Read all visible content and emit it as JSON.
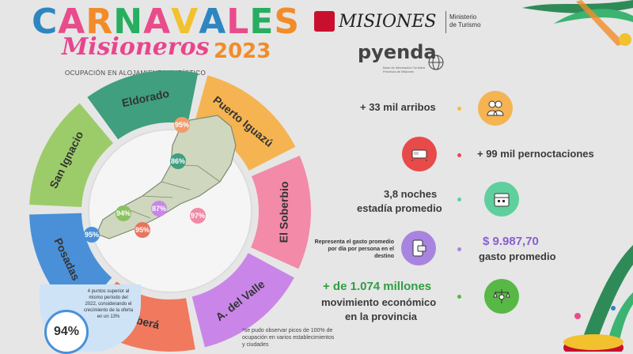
{
  "title": {
    "carnavales": "CARNAVALES",
    "letters": [
      {
        "ch": "C",
        "color": "#2e86c1"
      },
      {
        "ch": "A",
        "color": "#e94c8b"
      },
      {
        "ch": "R",
        "color": "#f28c28"
      },
      {
        "ch": "N",
        "color": "#27ae60"
      },
      {
        "ch": "A",
        "color": "#e94c8b"
      },
      {
        "ch": "V",
        "color": "#f2c12e"
      },
      {
        "ch": "A",
        "color": "#2e86c1"
      },
      {
        "ch": "L",
        "color": "#e94c8b"
      },
      {
        "ch": "E",
        "color": "#27ae60"
      },
      {
        "ch": "S",
        "color": "#f28c28"
      }
    ],
    "misioneros": "Misioneros",
    "year": "2023",
    "subtitle": "OCUPACIÓN EN ALOJAMIENTO TURÍSTICO"
  },
  "logos": {
    "misiones": "MISIONES",
    "ministerio": [
      "Ministerio",
      "de Turismo"
    ],
    "pyenda": "pyenda",
    "pyenda_sub": [
      "Base de Información Turística",
      "Provincia de Misiones"
    ]
  },
  "regions": [
    {
      "name": "Eldorado",
      "color": "#3f9f7e"
    },
    {
      "name": "Puerto Iguazú",
      "color": "#f5b451"
    },
    {
      "name": "El Soberbio",
      "color": "#f28aa8"
    },
    {
      "name": "A. del Valle",
      "color": "#c986e8"
    },
    {
      "name": "Oberá",
      "color": "#f0795e"
    },
    {
      "name": "Posadas",
      "color": "#4a90d9"
    },
    {
      "name": "San Ignacio",
      "color": "#9ccc6a"
    }
  ],
  "map_pcts": [
    {
      "label": "95%",
      "color": "#f29c6b"
    },
    {
      "label": "86%",
      "color": "#3f9f7e"
    },
    {
      "label": "87%",
      "color": "#c986e8"
    },
    {
      "label": "94%",
      "color": "#8cc063"
    },
    {
      "label": "97%",
      "color": "#f08aa6"
    },
    {
      "label": "95%",
      "color": "#e8755e"
    },
    {
      "label": "95%",
      "color": "#4a90d9"
    }
  ],
  "posadas_note": "4 puntos superior al mismo período del 2022, considerando el crecimiento de la oferta en un 13%",
  "total_pct": "94%",
  "footnote": "*se pudo observar picos de 100% de ocupación en varios establecimientos y ciudades",
  "stats": {
    "arribos": "+ 33 mil arribos",
    "pernoctaciones": "+ 99 mil pernoctaciones",
    "noches_line1": "3,8 noches",
    "noches_line2": "estadía promedio",
    "gasto_desc": "Representa el gasto promedio por día por persona en el destino",
    "gasto_value": "$ 9.987,70",
    "gasto_label": "gasto promedio",
    "mov_line1": "+ de 1.074 millones",
    "mov_line2": "movimiento económico",
    "mov_line3": "en la provincia"
  },
  "icons": [
    "people-icon",
    "bed-icon",
    "calendar-icon",
    "phone-card-icon",
    "scale-money-icon"
  ]
}
